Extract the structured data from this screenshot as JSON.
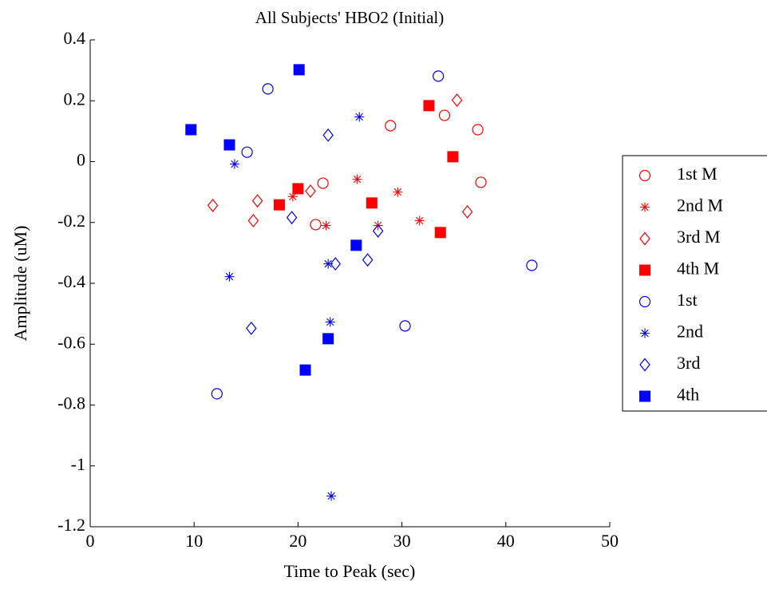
{
  "chart_data": {
    "type": "scatter",
    "title": "All Subjects' HBO2 (Initial)",
    "x_label": "Time to Peak (sec)",
    "y_label": "Amplitude (uM)",
    "xlim": [
      0,
      50
    ],
    "xticks": [
      0,
      10,
      20,
      30,
      40,
      50
    ],
    "ylim": [
      -1.2,
      0.4
    ],
    "yticks": [
      -1.2,
      -1,
      -0.8,
      -0.6,
      -0.4,
      -0.2,
      0,
      0.2,
      0.4
    ],
    "legend": "right-outside",
    "series": [
      {
        "name": "1st M",
        "color": "#ff0000",
        "marker": "circle",
        "x": [
          28.9,
          34.1,
          37.3,
          37.6,
          22.4,
          21.7
        ],
        "values": [
          0.118,
          0.152,
          0.105,
          -0.068,
          -0.071,
          -0.207
        ]
      },
      {
        "name": "2nd M",
        "color": "#ff0000",
        "marker": "star",
        "x": [
          25.7,
          29.6,
          31.7,
          27.7,
          22.7,
          19.5
        ],
        "values": [
          -0.058,
          -0.1,
          -0.194,
          -0.21,
          -0.21,
          -0.115
        ]
      },
      {
        "name": "3rd M",
        "color": "#ff0000",
        "marker": "diamond",
        "x": [
          11.8,
          16.1,
          15.7,
          21.2,
          35.3,
          36.3
        ],
        "values": [
          -0.144,
          -0.129,
          -0.194,
          -0.097,
          0.202,
          -0.165
        ]
      },
      {
        "name": "4th M",
        "color": "#ff0000",
        "marker": "square",
        "x": [
          18.2,
          20.0,
          27.1,
          32.6,
          34.9,
          33.7
        ],
        "values": [
          -0.142,
          -0.089,
          -0.136,
          0.184,
          0.016,
          -0.233
        ]
      },
      {
        "name": "1st",
        "color": "#0000ff",
        "marker": "circle",
        "x": [
          17.1,
          15.1,
          33.5,
          42.5,
          30.3,
          12.2
        ],
        "values": [
          0.239,
          0.031,
          0.281,
          -0.341,
          -0.54,
          -0.763
        ]
      },
      {
        "name": "2nd",
        "color": "#0000ff",
        "marker": "star",
        "x": [
          13.9,
          25.9,
          13.4,
          22.9,
          23.1,
          23.2
        ],
        "values": [
          -0.008,
          0.147,
          -0.378,
          -0.336,
          -0.527,
          -1.099
        ]
      },
      {
        "name": "3rd",
        "color": "#0000ff",
        "marker": "diamond",
        "x": [
          22.9,
          19.4,
          27.7,
          23.6,
          26.7,
          15.5
        ],
        "values": [
          0.087,
          -0.184,
          -0.228,
          -0.336,
          -0.323,
          -0.548
        ]
      },
      {
        "name": "4th",
        "color": "#0000ff",
        "marker": "square",
        "x": [
          9.7,
          13.4,
          20.1,
          25.6,
          22.9,
          20.7
        ],
        "values": [
          0.105,
          0.055,
          0.302,
          -0.275,
          -0.582,
          -0.685
        ]
      }
    ]
  }
}
